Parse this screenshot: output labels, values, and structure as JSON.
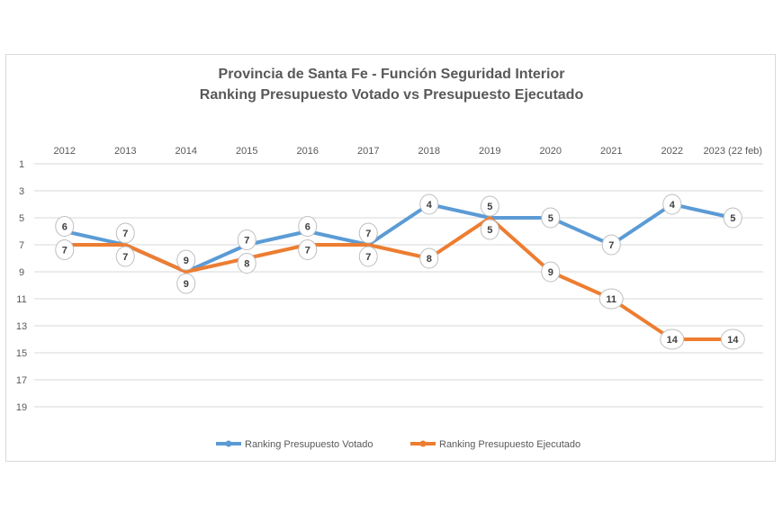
{
  "chart_data": {
    "type": "line",
    "title": "Provincia de Santa Fe - Función Seguridad Interior",
    "subtitle": "Ranking Presupuesto Votado vs Presupuesto Ejecutado",
    "categories": [
      "2012",
      "2013",
      "2014",
      "2015",
      "2016",
      "2017",
      "2018",
      "2019",
      "2020",
      "2021",
      "2022",
      "2023 (22 feb)"
    ],
    "y_ticks": [
      1,
      3,
      5,
      7,
      9,
      11,
      13,
      15,
      17,
      19
    ],
    "ylim": [
      1,
      19
    ],
    "y_reversed": true,
    "x_axis_position": "top",
    "grid": true,
    "legend_position": "bottom",
    "series": [
      {
        "name": "Ranking Presupuesto Votado",
        "color": "#5b9bd5",
        "values": [
          6,
          7,
          9,
          7,
          6,
          7,
          4,
          5,
          5,
          7,
          4,
          5
        ]
      },
      {
        "name": "Ranking Presupuesto Ejecutado",
        "color": "#ed7d31",
        "values": [
          7,
          7,
          9,
          8,
          7,
          7,
          8,
          5,
          9,
          11,
          14,
          14
        ]
      }
    ]
  }
}
